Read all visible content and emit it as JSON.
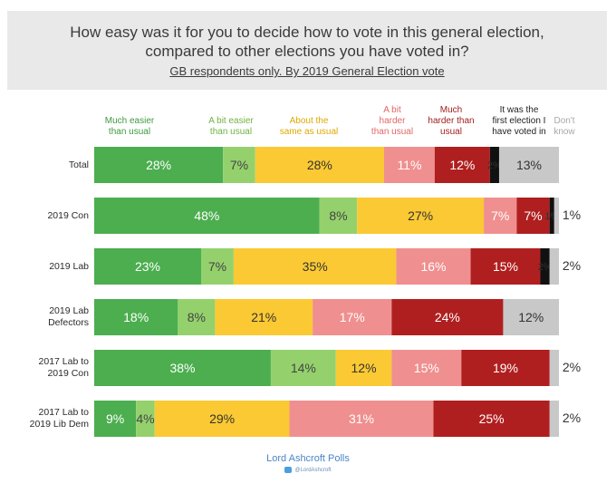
{
  "header": {
    "title_line1": "How easy was it for you to decide how to vote in this general election,",
    "title_line2": "compared to other elections you have voted in?",
    "subtitle": "GB respondents only. By 2019 General Election vote"
  },
  "footer": {
    "source": "Lord Ashcroft Polls",
    "handle": "@LordAshcroft"
  },
  "chart_data": {
    "type": "bar",
    "orientation": "horizontal",
    "stacked": true,
    "title": "How easy was it for you to decide how to vote in this general election, compared to other elections you have voted in?",
    "subtitle": "GB respondents only. By 2019 General Election vote",
    "categories": [
      "Total",
      "2019 Con",
      "2019 Lab",
      "2019 Lab\nDefectors",
      "2017 Lab to\n2019 Con",
      "2017 Lab to\n2019 Lib Dem"
    ],
    "legend_position": "top",
    "grid": false,
    "series": [
      {
        "name": "Much easier\nthan usual",
        "color": "#4cae4f",
        "values": [
          28,
          48,
          23,
          18,
          38,
          9
        ],
        "labels": [
          "28%",
          "48%",
          "23%",
          "18%",
          "38%",
          "9%"
        ]
      },
      {
        "name": "A bit easier\nthan usual",
        "color": "#94d16c",
        "values": [
          7,
          8,
          7,
          8,
          14,
          4
        ],
        "labels": [
          "7%",
          "8%",
          "7%",
          "8%",
          "14%",
          "4%"
        ]
      },
      {
        "name": "About the\nsame as usual",
        "color": "#fbc933",
        "values": [
          28,
          27,
          35,
          21,
          12,
          29
        ],
        "labels": [
          "28%",
          "27%",
          "35%",
          "21%",
          "12%",
          "29%"
        ]
      },
      {
        "name": "A bit\nharder\nthan usual",
        "color": "#f08f8f",
        "values": [
          11,
          7,
          16,
          17,
          15,
          31
        ],
        "labels": [
          "11%",
          "7%",
          "16%",
          "17%",
          "15%",
          "31%"
        ]
      },
      {
        "name": "Much\nharder than\nusual",
        "color": "#b01f1f",
        "values": [
          12,
          7,
          15,
          24,
          19,
          25
        ],
        "labels": [
          "12%",
          "7%",
          "15%",
          "24%",
          "19%",
          "25%"
        ]
      },
      {
        "name": "It was the\nfirst election I\nhave voted in",
        "color": "#111111",
        "values": [
          2,
          1,
          2,
          0,
          0,
          0
        ],
        "labels": [
          "2%",
          "1%",
          "2%",
          "",
          "",
          ""
        ]
      },
      {
        "name": "Don't\nknow",
        "color": "#c8c8c8",
        "values": [
          13,
          1,
          2,
          12,
          2,
          2
        ],
        "labels": [
          "13%",
          "1%",
          "2%",
          "12%",
          "2%",
          "2%"
        ]
      }
    ],
    "legend_text_colors": [
      "#3d9a3f",
      "#6fb342",
      "#e0a800",
      "#e06666",
      "#a31d1d",
      "#222222",
      "#a8a8a8"
    ],
    "value_label_colors": [
      "#ffffff",
      "#444444",
      "#333333",
      "#ffffff",
      "#ffffff",
      "#333333",
      "#333333"
    ]
  }
}
